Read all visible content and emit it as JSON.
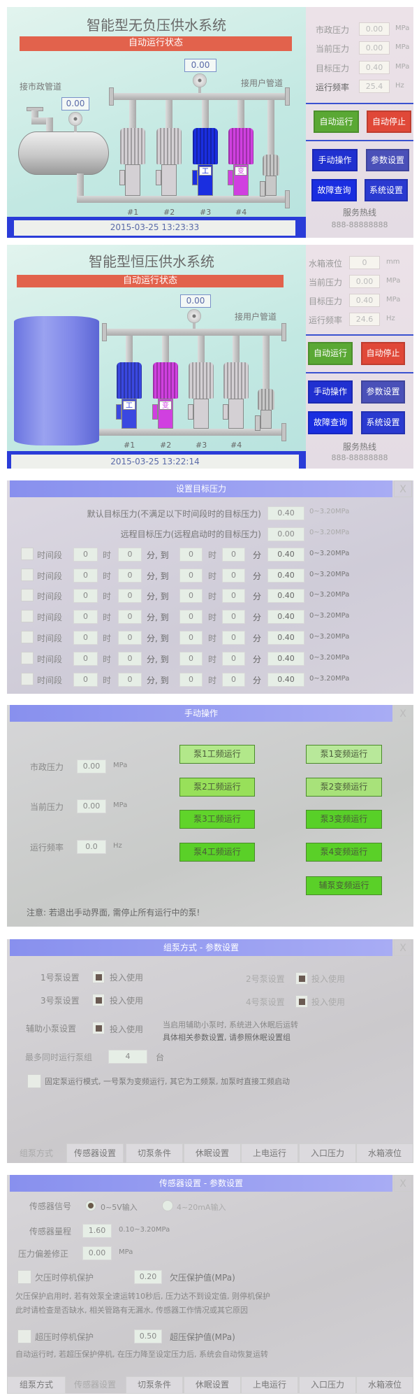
{
  "screen1": {
    "title": "智能型无负压供水系统",
    "status": "自动运行状态",
    "outlet_pressure": "0.00",
    "inlet_pressure": "0.00",
    "inlet_label": "接市政管道",
    "outlet_label": "接用户管道",
    "pump_labels": [
      "#1",
      "#2",
      "#3",
      "#4"
    ],
    "pump_colors": [
      "#d4d0d4",
      "#d4d0d4",
      "#1a2ee0",
      "#d040e0",
      "#c8c8c8"
    ],
    "pump_badges": [
      "",
      "",
      "工",
      "变",
      ""
    ],
    "datetime": "2015-03-25  13:23:33",
    "readouts": [
      {
        "label": "市政压力",
        "value": "0.00",
        "unit": "MPa"
      },
      {
        "label": "当前压力",
        "value": "0.00",
        "unit": "MPa"
      },
      {
        "label": "目标压力",
        "value": "0.40",
        "unit": "MPa"
      },
      {
        "label": "运行频率",
        "value": "25.4",
        "unit": "Hz"
      }
    ],
    "buttons": {
      "auto_run": "自动运行",
      "auto_stop": "自动停止",
      "manual": "手动操作",
      "params": "参数设置",
      "fault": "故障查询",
      "system": "系统设置"
    },
    "hotline_label": "服务热线",
    "hotline": "888-88888888"
  },
  "screen2": {
    "title": "智能型恒压供水系统",
    "status": "自动运行状态",
    "outlet_pressure": "0.00",
    "outlet_label": "接用户管道",
    "pump_labels": [
      "#1",
      "#2",
      "#3",
      "#4"
    ],
    "pump_colors": [
      "#3a48e0",
      "#d040e0",
      "#d4d0d4",
      "#d4d0d4",
      "#c8c8c8"
    ],
    "pump_badges": [
      "工",
      "变",
      "",
      "",
      ""
    ],
    "datetime": "2015-03-25  13:22:14",
    "readouts": [
      {
        "label": "水箱液位",
        "value": "0",
        "unit": "mm"
      },
      {
        "label": "当前压力",
        "value": "0.00",
        "unit": "MPa"
      },
      {
        "label": "目标压力",
        "value": "0.40",
        "unit": "MPa"
      },
      {
        "label": "运行频率",
        "value": "24.6",
        "unit": "Hz"
      }
    ],
    "buttons": {
      "auto_run": "自动运行",
      "auto_stop": "自动停止",
      "manual": "手动操作",
      "params": "参数设置",
      "fault": "故障查询",
      "system": "系统设置"
    },
    "hotline_label": "服务热线",
    "hotline": "888-88888888"
  },
  "target_pressure": {
    "title": "设置目标压力",
    "close": "X",
    "default_label": "默认目标压力(不满足以下时间段时的目标压力)",
    "default_value": "0.40",
    "remote_label": "远程目标压力(远程启动时的目标压力)",
    "remote_value": "0.00",
    "range": "0~3.20MPa",
    "period_label": "时间段",
    "hour_label": "时",
    "minute_to_label": "分, 到",
    "minute_label": "分",
    "periods": [
      {
        "enabled": false,
        "h1": "0",
        "m1": "0",
        "h2": "0",
        "m2": "0",
        "value": "0.40"
      },
      {
        "enabled": false,
        "h1": "0",
        "m1": "0",
        "h2": "0",
        "m2": "0",
        "value": "0.40"
      },
      {
        "enabled": false,
        "h1": "0",
        "m1": "0",
        "h2": "0",
        "m2": "0",
        "value": "0.40"
      },
      {
        "enabled": false,
        "h1": "0",
        "m1": "0",
        "h2": "0",
        "m2": "0",
        "value": "0.40"
      },
      {
        "enabled": false,
        "h1": "0",
        "m1": "0",
        "h2": "0",
        "m2": "0",
        "value": "0.40"
      },
      {
        "enabled": false,
        "h1": "0",
        "m1": "0",
        "h2": "0",
        "m2": "0",
        "value": "0.40"
      },
      {
        "enabled": false,
        "h1": "0",
        "m1": "0",
        "h2": "0",
        "m2": "0",
        "value": "0.40"
      }
    ]
  },
  "manual": {
    "title": "手动操作",
    "close": "X",
    "readouts": [
      {
        "label": "市政压力",
        "value": "0.00",
        "unit": "MPa"
      },
      {
        "label": "当前压力",
        "value": "0.00",
        "unit": "MPa"
      },
      {
        "label": "运行频率",
        "value": "0.0",
        "unit": "Hz"
      }
    ],
    "fixed_freq_buttons": [
      "泵1工频运行",
      "泵2工频运行",
      "泵3工频运行",
      "泵4工频运行"
    ],
    "var_freq_buttons": [
      "泵1变频运行",
      "泵2变频运行",
      "泵3变频运行",
      "泵4变频运行",
      "辅泵变频运行"
    ],
    "note": "注意: 若退出手动界面, 需停止所有运行中的泵!"
  },
  "group_mode": {
    "title": "组泵方式 - 参数设置",
    "close": "X",
    "pumps": [
      {
        "label": "1号泵设置",
        "option": "投入使用",
        "checked": true
      },
      {
        "label": "2号泵设置",
        "option": "投入使用",
        "checked": true
      },
      {
        "label": "3号泵设置",
        "option": "投入使用",
        "checked": true
      },
      {
        "label": "4号泵设置",
        "option": "投入使用",
        "checked": true
      }
    ],
    "aux_label": "辅助小泵设置",
    "aux_option": "投入使用",
    "aux_checked": true,
    "aux_note_1": "当启用辅助小泵时, 系统进入休眠后运转",
    "aux_note_2": "具体相关参数设置, 请参照休眠设置组",
    "max_label": "最多同时运行泵组",
    "max_value": "4",
    "max_unit": "台",
    "fixed_mode_checked": false,
    "fixed_mode_label": "固定泵运行模式, 一号泵为变频运行, 其它为工频泵, 加泵时直接工频启动",
    "tabs": [
      "组泵方式",
      "传感器设置",
      "切泵条件",
      "休眠设置",
      "上电运行",
      "入口压力",
      "水箱液位"
    ],
    "active_tab": "组泵方式"
  },
  "sensor": {
    "title": "传感器设置 - 参数设置",
    "close": "X",
    "signal_label": "传感器信号",
    "signal_options": [
      "0~5V输入",
      "4~20mA输入"
    ],
    "signal_selected": "0~5V输入",
    "range_label": "传感器量程",
    "range_value": "1.60",
    "range_hint": "0.10~3.20MPa",
    "offset_label": "压力偏差修正",
    "offset_value": "0.00",
    "offset_unit": "MPa",
    "under_label": "欠压时停机保护",
    "under_checked": false,
    "under_value": "0.20",
    "under_value_label": "欠压保护值(MPa)",
    "under_note_1": "欠压保护启用时, 若有效泵全速运转10秒后, 压力达不到设定值, 则停机保护",
    "under_note_2": "此时请检查是否缺水, 相关管路有无漏水, 传感器工作情况或其它原因",
    "over_label": "超压时停机保护",
    "over_checked": false,
    "over_value": "0.50",
    "over_value_label": "超压保护值(MPa)",
    "over_note": "自动运行时, 若超压保护停机, 在压力降至设定压力后, 系统会自动恢复运转",
    "tabs": [
      "组泵方式",
      "传感器设置",
      "切泵条件",
      "休眠设置",
      "上电运行",
      "入口压力",
      "水箱液位"
    ],
    "active_tab": "传感器设置"
  },
  "colors": {
    "run_green": "#5aa834",
    "stop_red": "#e04838",
    "nav_blue": "#2030d0",
    "status_red": "#e2624c"
  }
}
